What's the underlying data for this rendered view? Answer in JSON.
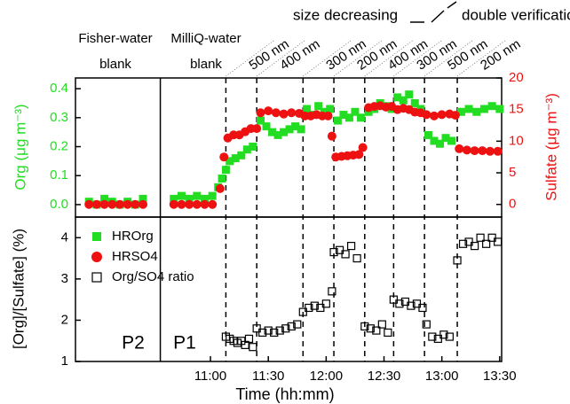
{
  "chart_data": [
    {
      "type": "scatter",
      "ylabel": "Org (μg m⁻³)",
      "y2label": "Sulfate (μg m⁻³)",
      "xlim": [
        590,
        811
      ],
      "ylim": [
        -0.043,
        0.437
      ],
      "yticks": [
        {
          "value": 0,
          "label": "0.0"
        },
        {
          "value": 0.1,
          "label": "0.1"
        },
        {
          "value": 0.2,
          "label": "0.2"
        },
        {
          "value": 0.3,
          "label": "0.3"
        },
        {
          "value": 0.4,
          "label": "0.4"
        }
      ],
      "y2lim": [
        -2,
        20
      ],
      "y2ticks": [
        0,
        5,
        10,
        15,
        20
      ],
      "divider": 634,
      "vlines": [
        668,
        684,
        708,
        724,
        740,
        755,
        771,
        788
      ],
      "series": [
        {
          "name": "HROrg",
          "color": "#22dd22",
          "marker": "square",
          "x": [
            597,
            601,
            605,
            609,
            613,
            617,
            621,
            625,
            641,
            645,
            649,
            653,
            657,
            661,
            664,
            666,
            668,
            670,
            673,
            676,
            679,
            682,
            686,
            689,
            692,
            695,
            698,
            701,
            704,
            707,
            710,
            713,
            716,
            719,
            722,
            726,
            729,
            732,
            735,
            738,
            742,
            745,
            748,
            751,
            754,
            757,
            760,
            763,
            766,
            769,
            773,
            776,
            779,
            782,
            785,
            790,
            794,
            798,
            802,
            806,
            810
          ],
          "values": [
            0.01,
            0,
            0.02,
            0.01,
            0,
            0.01,
            0,
            0.02,
            0.02,
            0.03,
            0.02,
            0.03,
            0.02,
            0.03,
            0.06,
            0.09,
            0.12,
            0.15,
            0.16,
            0.17,
            0.19,
            0.2,
            0.29,
            0.27,
            0.25,
            0.24,
            0.25,
            0.26,
            0.27,
            0.26,
            0.33,
            0.31,
            0.34,
            0.32,
            0.33,
            0.29,
            0.31,
            0.3,
            0.32,
            0.3,
            0.32,
            0.33,
            0.35,
            0.34,
            0.33,
            0.37,
            0.36,
            0.38,
            0.35,
            0.33,
            0.24,
            0.22,
            0.21,
            0.23,
            0.22,
            0.32,
            0.33,
            0.32,
            0.33,
            0.34,
            0.33
          ]
        },
        {
          "name": "HRSO4",
          "color": "#ee1111",
          "marker": "circle",
          "axis": "y2",
          "x": [
            597,
            601,
            605,
            609,
            613,
            617,
            621,
            625,
            641,
            645,
            649,
            653,
            657,
            661,
            665,
            667,
            669,
            672,
            675,
            678,
            681,
            684,
            686,
            690,
            694,
            698,
            702,
            706,
            709,
            712,
            715,
            718,
            721,
            723,
            725,
            728,
            731,
            734,
            737,
            739,
            742,
            745,
            748,
            751,
            754,
            757,
            760,
            763,
            766,
            769,
            772,
            776,
            780,
            784,
            787,
            789,
            793,
            797,
            801,
            805,
            809
          ],
          "values": [
            0,
            0,
            0,
            0,
            0,
            0,
            0,
            0,
            0,
            0,
            0,
            0,
            0,
            0,
            2.5,
            7.5,
            10.5,
            11,
            11,
            11.5,
            12,
            12,
            14.5,
            14.8,
            14.5,
            14.3,
            14.5,
            14.4,
            14,
            14,
            14.2,
            14,
            14,
            10.8,
            7.5,
            7.6,
            7.7,
            7.8,
            7.9,
            9,
            15.3,
            15.5,
            15.6,
            15.4,
            15.5,
            15,
            15.2,
            15,
            14.6,
            14.5,
            14.2,
            14,
            14.2,
            14.3,
            14.1,
            8.8,
            8.6,
            8.5,
            8.5,
            8.4,
            8.4
          ]
        }
      ]
    },
    {
      "type": "scatter",
      "ylabel": "[Org]/[Sulfate] (%)",
      "xlabel": "Time (hh:mm)",
      "xlim": [
        590,
        811
      ],
      "xticks": [
        {
          "value": 660,
          "label": "11:00"
        },
        {
          "value": 690,
          "label": "11:30"
        },
        {
          "value": 720,
          "label": "12:00"
        },
        {
          "value": 750,
          "label": "12:30"
        },
        {
          "value": 780,
          "label": "13:00"
        },
        {
          "value": 810,
          "label": "13:30"
        }
      ],
      "ylim": [
        1,
        4.5
      ],
      "yticks": [
        1,
        2,
        3,
        4
      ],
      "legend": "upper left",
      "series": [
        {
          "name": "Org/SO4 ratio",
          "color": "#000000",
          "marker": "open-square",
          "x": [
            668,
            670,
            672,
            674,
            676,
            678,
            680,
            682,
            684,
            687,
            690,
            693,
            696,
            699,
            702,
            705,
            708,
            711,
            714,
            717,
            720,
            723,
            724,
            727,
            730,
            733,
            736,
            740,
            743,
            746,
            749,
            752,
            755,
            758,
            761,
            764,
            767,
            770,
            772,
            775,
            778,
            781,
            784,
            788,
            791,
            794,
            797,
            800,
            803,
            806,
            809
          ],
          "values": [
            1.6,
            1.55,
            1.5,
            1.45,
            1.5,
            1.4,
            1.55,
            1.35,
            1.8,
            1.7,
            1.75,
            1.7,
            1.75,
            1.8,
            1.85,
            1.9,
            2.2,
            2.3,
            2.35,
            2.3,
            2.4,
            2.7,
            3.65,
            3.7,
            3.6,
            3.8,
            3.5,
            1.85,
            1.8,
            1.75,
            1.9,
            1.7,
            2.5,
            2.4,
            2.45,
            2.35,
            2.4,
            2.3,
            1.9,
            1.6,
            1.55,
            1.65,
            1.6,
            3.45,
            3.85,
            3.9,
            3.8,
            4.0,
            3.85,
            4.0,
            3.9
          ]
        }
      ]
    }
  ],
  "annotations": {
    "groups": [
      {
        "title": "Fisher-water",
        "label": "blank"
      },
      {
        "title": "MilliQ-water",
        "label": "blank"
      }
    ],
    "headers": [
      "size decreasing",
      "double verification"
    ],
    "sizes": [
      "500 nm",
      "400 nm",
      "300 nm",
      "200 nm",
      "400 nm",
      "300 nm",
      "500 nm",
      "200 nm"
    ],
    "panels": [
      "P2",
      "P1"
    ]
  }
}
